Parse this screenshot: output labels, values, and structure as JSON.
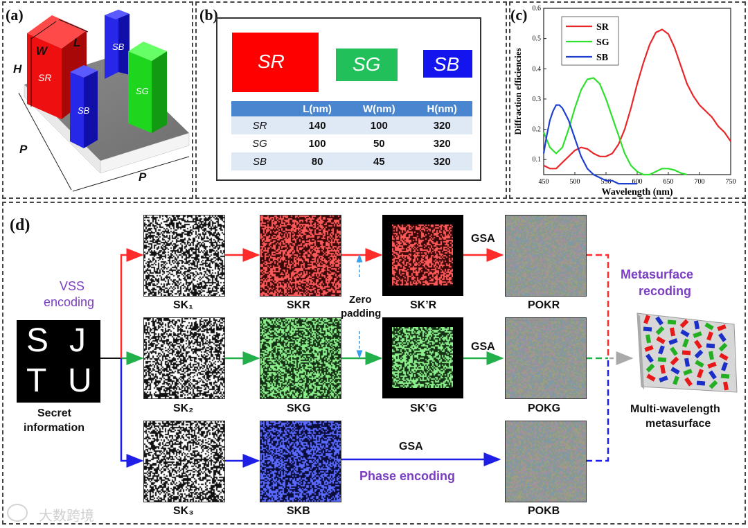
{
  "panel_labels": {
    "a": "(a)",
    "b": "(b)",
    "c": "(c)",
    "d": "(d)"
  },
  "panel_a": {
    "dims": {
      "W": "W",
      "L": "L",
      "H": "H",
      "P": "P"
    },
    "pillars": {
      "SR": "SR",
      "SB": "SB",
      "SG": "SG"
    }
  },
  "panel_b": {
    "swatches": [
      {
        "label": "SR",
        "color": "#ff0000"
      },
      {
        "label": "SG",
        "color": "#22c05a"
      },
      {
        "label": "SB",
        "color": "#1414ee"
      }
    ],
    "table": {
      "headers": [
        "",
        "L(nm)",
        "W(nm)",
        "H(nm)"
      ],
      "rows": [
        {
          "name": "SR",
          "L": "140",
          "W": "100",
          "H": "320"
        },
        {
          "name": "SG",
          "L": "100",
          "W": "50",
          "H": "320"
        },
        {
          "name": "SB",
          "L": "80",
          "W": "45",
          "H": "320"
        }
      ]
    }
  },
  "chart_data": {
    "type": "line",
    "title": "",
    "xlabel": "Wavelength (nm)",
    "ylabel": "Diffraction efficiencies",
    "xlim": [
      450,
      750
    ],
    "ylim": [
      0.05,
      0.6
    ],
    "xticks": [
      450,
      500,
      550,
      600,
      650,
      700,
      750
    ],
    "yticks": [
      0.1,
      0.2,
      0.3,
      0.4,
      0.5,
      0.6
    ],
    "legend": "top-left",
    "series": [
      {
        "name": "SR",
        "color": "#e8262a",
        "x": [
          450,
          460,
          470,
          480,
          490,
          500,
          510,
          520,
          530,
          540,
          550,
          560,
          570,
          580,
          590,
          600,
          610,
          620,
          630,
          640,
          650,
          660,
          670,
          680,
          690,
          700,
          710,
          720,
          730,
          740,
          750
        ],
        "values": [
          0.08,
          0.07,
          0.07,
          0.09,
          0.11,
          0.13,
          0.14,
          0.135,
          0.12,
          0.11,
          0.11,
          0.12,
          0.15,
          0.2,
          0.27,
          0.35,
          0.42,
          0.48,
          0.52,
          0.53,
          0.515,
          0.47,
          0.41,
          0.35,
          0.31,
          0.28,
          0.26,
          0.24,
          0.21,
          0.19,
          0.16
        ]
      },
      {
        "name": "SG",
        "color": "#2ee02e",
        "x": [
          450,
          460,
          470,
          480,
          490,
          500,
          510,
          520,
          530,
          540,
          550,
          560,
          570,
          580,
          590,
          600,
          610,
          620,
          630,
          640,
          650,
          660,
          670,
          680
        ],
        "values": [
          0.19,
          0.14,
          0.12,
          0.14,
          0.2,
          0.27,
          0.33,
          0.365,
          0.37,
          0.35,
          0.3,
          0.24,
          0.18,
          0.12,
          0.08,
          0.06,
          0.05,
          0.05,
          0.06,
          0.07,
          0.07,
          0.065,
          0.055,
          0.05
        ]
      },
      {
        "name": "SB",
        "color": "#1f3fcf",
        "x": [
          450,
          455,
          460,
          465,
          470,
          475,
          480,
          485,
          490,
          495,
          500,
          505,
          510,
          515,
          520,
          530,
          540,
          550,
          560,
          570,
          580,
          590,
          600
        ],
        "values": [
          0.12,
          0.18,
          0.23,
          0.26,
          0.28,
          0.28,
          0.27,
          0.25,
          0.23,
          0.2,
          0.17,
          0.14,
          0.11,
          0.09,
          0.07,
          0.05,
          0.04,
          0.03,
          0.03,
          0.02,
          0.02,
          0.02,
          0.02
        ]
      }
    ]
  },
  "panel_d": {
    "secret": {
      "letters": [
        "S",
        "J",
        "T",
        "U"
      ],
      "caption_line1": "Secret",
      "caption_line2": "information"
    },
    "vss_line1": "VSS",
    "vss_line2": "encoding",
    "sk1": "SK₁",
    "sk2": "SK₂",
    "sk3": "SK₃",
    "skr": "SKR",
    "skg": "SKG",
    "skb": "SKB",
    "skr_p": "SK’R",
    "skg_p": "SK’G",
    "zero_line1": "Zero",
    "zero_line2": "padding",
    "gsa1": "GSA",
    "gsa2": "GSA",
    "gsa3": "GSA",
    "phase": "Phase encoding",
    "pokr": "POKR",
    "pokg": "POKG",
    "pokb": "POKB",
    "meta_line1": "Metasurface",
    "meta_line2": "recoding",
    "multi_line1": "Multi-wavelength",
    "multi_line2": "metasurface"
  },
  "watermark": "大数跨境",
  "colors": {
    "red": "#ff2a2a",
    "green": "#22b04a",
    "blue": "#1e1ee6",
    "purple": "#7a3fc0"
  }
}
